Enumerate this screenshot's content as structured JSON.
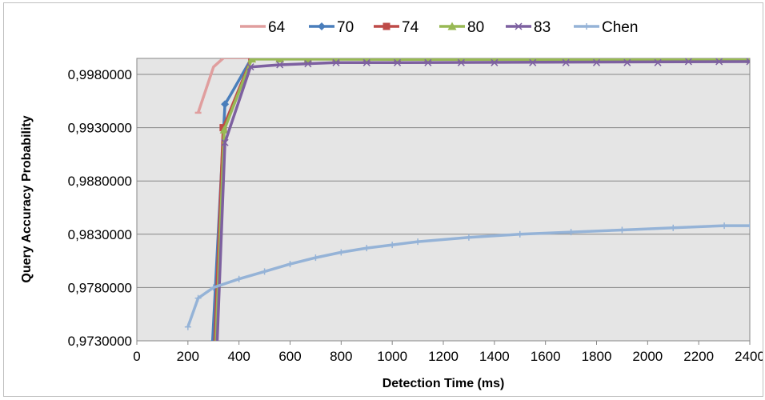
{
  "chart_data": {
    "type": "line",
    "xlabel": "Detection Time (ms)",
    "ylabel": "Query Accuracy Probability",
    "xlim": [
      0,
      2400
    ],
    "ylim": [
      0.973,
      0.9995
    ],
    "x_ticks": [
      0,
      200,
      400,
      600,
      800,
      1000,
      1200,
      1400,
      1600,
      1800,
      2000,
      2200,
      2400
    ],
    "x_tick_labels": [
      "0",
      "200",
      "400",
      "600",
      "800",
      "1000",
      "1200",
      "1400",
      "1600",
      "1800",
      "2000",
      "2200",
      "2400"
    ],
    "y_ticks": [
      0.973,
      0.978,
      0.983,
      0.988,
      0.993,
      0.998
    ],
    "y_tick_labels": [
      "0,9730000",
      "0,9780000",
      "0,9830000",
      "0,9880000",
      "0,9930000",
      "0,9980000"
    ],
    "grid": "horizontal",
    "legend_position": "top",
    "series": [
      {
        "name": "64",
        "color": "#e09e9e",
        "marker": "dash",
        "points": [
          [
            240,
            0.9944
          ],
          [
            300,
            0.9987
          ],
          [
            340,
            0.99955
          ],
          [
            360,
            0.99955
          ],
          [
            2400,
            0.99955
          ]
        ],
        "marker_points": [
          [
            240,
            0.9944
          ]
        ]
      },
      {
        "name": "70",
        "color": "#4a7ebb",
        "marker": "diamond",
        "points": [
          [
            290,
            0.97
          ],
          [
            345,
            0.9952
          ],
          [
            365,
            0.996
          ],
          [
            450,
            0.99955
          ],
          [
            2400,
            0.99955
          ]
        ],
        "marker_points": [
          [
            345,
            0.9952
          ],
          [
            450,
            0.99955
          ],
          [
            560,
            0.99955
          ],
          [
            670,
            0.99955
          ],
          [
            780,
            0.99955
          ],
          [
            900,
            0.99955
          ],
          [
            1020,
            0.99955
          ],
          [
            1140,
            0.99955
          ],
          [
            1270,
            0.99955
          ],
          [
            1400,
            0.99955
          ],
          [
            1550,
            0.99955
          ],
          [
            1680,
            0.99955
          ],
          [
            1800,
            0.99955
          ],
          [
            1920,
            0.99955
          ],
          [
            2040,
            0.99955
          ],
          [
            2160,
            0.99955
          ],
          [
            2280,
            0.99955
          ],
          [
            2400,
            0.99955
          ]
        ]
      },
      {
        "name": "74",
        "color": "#be4b48",
        "marker": "square",
        "points": [
          [
            300,
            0.97
          ],
          [
            338,
            0.993
          ],
          [
            450,
            0.99955
          ],
          [
            2400,
            0.99955
          ]
        ],
        "marker_points": [
          [
            338,
            0.993
          ],
          [
            450,
            0.99955
          ],
          [
            560,
            0.99955
          ],
          [
            670,
            0.99955
          ],
          [
            780,
            0.99955
          ],
          [
            900,
            0.99955
          ],
          [
            1020,
            0.99955
          ],
          [
            1140,
            0.99955
          ],
          [
            1270,
            0.99955
          ],
          [
            1400,
            0.99955
          ],
          [
            1550,
            0.99955
          ],
          [
            1680,
            0.99955
          ],
          [
            1800,
            0.99955
          ],
          [
            1920,
            0.99955
          ],
          [
            2040,
            0.99955
          ],
          [
            2160,
            0.99955
          ],
          [
            2280,
            0.99955
          ],
          [
            2400,
            0.99955
          ]
        ]
      },
      {
        "name": "80",
        "color": "#98b954",
        "marker": "triangle",
        "points": [
          [
            305,
            0.97
          ],
          [
            342,
            0.9928
          ],
          [
            450,
            0.99945
          ],
          [
            1000,
            0.9994
          ],
          [
            2400,
            0.9994
          ]
        ],
        "marker_points": [
          [
            342,
            0.9928
          ],
          [
            450,
            0.99945
          ],
          [
            560,
            0.99945
          ],
          [
            670,
            0.9994
          ],
          [
            780,
            0.9994
          ],
          [
            900,
            0.9994
          ],
          [
            1020,
            0.9994
          ],
          [
            1140,
            0.9994
          ],
          [
            1270,
            0.9994
          ],
          [
            1400,
            0.9994
          ],
          [
            1550,
            0.9994
          ],
          [
            1680,
            0.9994
          ],
          [
            1800,
            0.9994
          ],
          [
            1920,
            0.9994
          ],
          [
            2040,
            0.9994
          ],
          [
            2160,
            0.9994
          ],
          [
            2280,
            0.9994
          ],
          [
            2400,
            0.9994
          ]
        ]
      },
      {
        "name": "83",
        "color": "#7d60a0",
        "marker": "x",
        "points": [
          [
            310,
            0.97
          ],
          [
            345,
            0.9916
          ],
          [
            445,
            0.9987
          ],
          [
            560,
            0.9989
          ],
          [
            780,
            0.9991
          ],
          [
            1000,
            0.9991
          ],
          [
            2400,
            0.9992
          ]
        ],
        "marker_points": [
          [
            345,
            0.9916
          ],
          [
            445,
            0.9987
          ],
          [
            560,
            0.9989
          ],
          [
            670,
            0.999
          ],
          [
            780,
            0.9991
          ],
          [
            900,
            0.9991
          ],
          [
            1020,
            0.9991
          ],
          [
            1140,
            0.9991
          ],
          [
            1270,
            0.9991
          ],
          [
            1400,
            0.9991
          ],
          [
            1550,
            0.9991
          ],
          [
            1680,
            0.9991
          ],
          [
            1800,
            0.9991
          ],
          [
            1920,
            0.9991
          ],
          [
            2040,
            0.9991
          ],
          [
            2160,
            0.9992
          ],
          [
            2280,
            0.9992
          ],
          [
            2400,
            0.9992
          ]
        ]
      },
      {
        "name": "Chen",
        "color": "#95b3d7",
        "marker": "plus",
        "points": [
          [
            200,
            0.9743
          ],
          [
            240,
            0.977
          ],
          [
            300,
            0.978
          ],
          [
            400,
            0.9788
          ],
          [
            500,
            0.9795
          ],
          [
            600,
            0.9802
          ],
          [
            700,
            0.9808
          ],
          [
            800,
            0.9813
          ],
          [
            900,
            0.9817
          ],
          [
            1000,
            0.982
          ],
          [
            1100,
            0.9823
          ],
          [
            1300,
            0.9827
          ],
          [
            1500,
            0.983
          ],
          [
            1700,
            0.9832
          ],
          [
            1900,
            0.9834
          ],
          [
            2100,
            0.9836
          ],
          [
            2300,
            0.9838
          ],
          [
            2400,
            0.9838
          ]
        ],
        "marker_points": [
          [
            200,
            0.9743
          ],
          [
            240,
            0.977
          ],
          [
            300,
            0.978
          ],
          [
            400,
            0.9788
          ],
          [
            500,
            0.9795
          ],
          [
            600,
            0.9802
          ],
          [
            700,
            0.9808
          ],
          [
            800,
            0.9813
          ],
          [
            900,
            0.9817
          ],
          [
            1000,
            0.982
          ],
          [
            1100,
            0.9823
          ],
          [
            1300,
            0.9827
          ],
          [
            1500,
            0.983
          ],
          [
            1700,
            0.9832
          ],
          [
            1900,
            0.9834
          ],
          [
            2100,
            0.9836
          ],
          [
            2300,
            0.9838
          ],
          [
            2400,
            0.9838
          ]
        ]
      }
    ]
  }
}
